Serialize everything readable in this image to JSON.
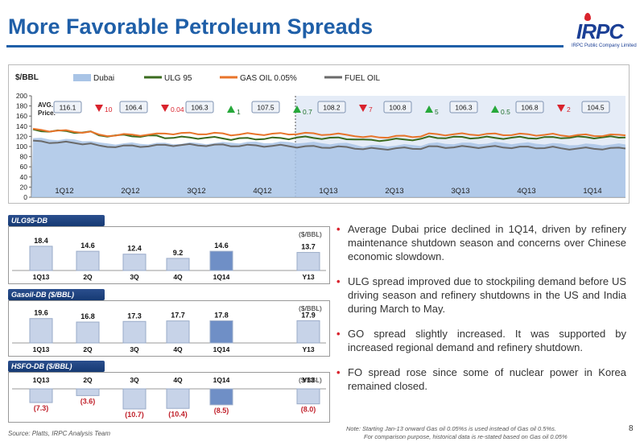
{
  "slide": {
    "title": "More Favorable Petroleum Spreads",
    "logo": {
      "text": "IRPC",
      "subtitle": "IRPC Public Company Limited"
    },
    "page_number": "8",
    "source": "Source: Platts, IRPC Analysis Team",
    "note_line1": "Note: Starting Jan-13 onward  Gas oil 0.05%s is used instead of Gas oil 0.5%s.",
    "note_line2": "For comparison purpose, historical data is re-stated based on Gas oil 0.05%"
  },
  "bullets": [
    "Average Dubai  price declined  in 1Q14, driven by refinery maintenance shutdown season and concerns over Chinese economic slowdown.",
    "ULG spread improved due to stockpiling demand before US driving season and refinery shutdowns in the US and India during March to May.",
    "GO spread slightly increased. It was supported by increased regional demand and refinery shutdown.",
    "FO spread rose since some of nuclear power in Korea remained closed."
  ],
  "chart_data": [
    {
      "type": "area",
      "ylabel": "$/BBL",
      "ylim": [
        0,
        200
      ],
      "yticks": [
        0,
        20,
        40,
        60,
        80,
        100,
        120,
        140,
        160,
        180,
        200
      ],
      "categories": [
        "1Q12",
        "2Q12",
        "3Q12",
        "4Q12",
        "1Q13",
        "2Q13",
        "3Q13",
        "4Q13",
        "1Q14"
      ],
      "series_names": [
        "Dubai",
        "ULG 95",
        "GAS OIL 0.05%",
        "FUEL OIL"
      ],
      "colors": {
        "dubai": "#a9c4e6",
        "ulg": "#3a6b1e",
        "gasoil": "#e8742a",
        "fueloil": "#6a6a6a",
        "down": "#d9232d",
        "up": "#26a83a"
      },
      "avg_label": "AVG. Price.",
      "avg_prices": [
        "116.1",
        "106.4",
        "106.3",
        "107.5",
        "108.2",
        "100.8",
        "106.3",
        "106.8",
        "104.5"
      ],
      "changes": [
        {
          "dir": "down",
          "value": "10"
        },
        {
          "dir": "down",
          "value": "0.04"
        },
        {
          "dir": "up",
          "value": "1"
        },
        {
          "dir": "up",
          "value": "0.7"
        },
        {
          "dir": "down",
          "value": "7"
        },
        {
          "dir": "up",
          "value": "5"
        },
        {
          "dir": "up",
          "value": "0.5"
        },
        {
          "dir": "down",
          "value": "2"
        }
      ],
      "quarterly_levels": {
        "dubai": [
          116,
          106,
          106,
          108,
          108,
          101,
          106,
          107,
          104
        ],
        "ulg": [
          132,
          122,
          118,
          115,
          118,
          112,
          118,
          117,
          118
        ],
        "gasoil": [
          133,
          122,
          126,
          124,
          126,
          118,
          124,
          124,
          122
        ],
        "fueloil": [
          110,
          100,
          103,
          102,
          100,
          95,
          99,
          99,
          96
        ]
      }
    },
    {
      "type": "bar",
      "title": "ULG95-DB",
      "unit": "($/BBL)",
      "categories": [
        "1Q13",
        "2Q",
        "3Q",
        "4Q",
        "1Q14",
        "Y13"
      ],
      "values": [
        18.4,
        14.6,
        12.4,
        9.2,
        14.6,
        13.7
      ],
      "labels": [
        "18.4",
        "14.6",
        "12.4",
        "9.2",
        "14.6",
        "13.7"
      ]
    },
    {
      "type": "bar",
      "title": "Gasoil-DB ($/BBL)",
      "unit": "($/BBL)",
      "categories": [
        "1Q13",
        "2Q",
        "3Q",
        "4Q",
        "1Q14",
        "Y13"
      ],
      "values": [
        19.6,
        16.8,
        17.3,
        17.7,
        17.8,
        17.9
      ],
      "labels": [
        "19.6",
        "16.8",
        "17.3",
        "17.7",
        "17.8",
        "17.9"
      ]
    },
    {
      "type": "bar",
      "title": "HSFO-DB ($/BBL)",
      "unit": "($/BBL)",
      "categories": [
        "1Q13",
        "2Q",
        "3Q",
        "4Q",
        "1Q14",
        "Y13"
      ],
      "values": [
        -7.3,
        -3.6,
        -10.7,
        -10.4,
        -8.5,
        -8.0
      ],
      "labels": [
        "(7.3)",
        "(3.6)",
        "(10.7)",
        "(10.4)",
        "(8.5)",
        "(8.0)"
      ]
    }
  ]
}
